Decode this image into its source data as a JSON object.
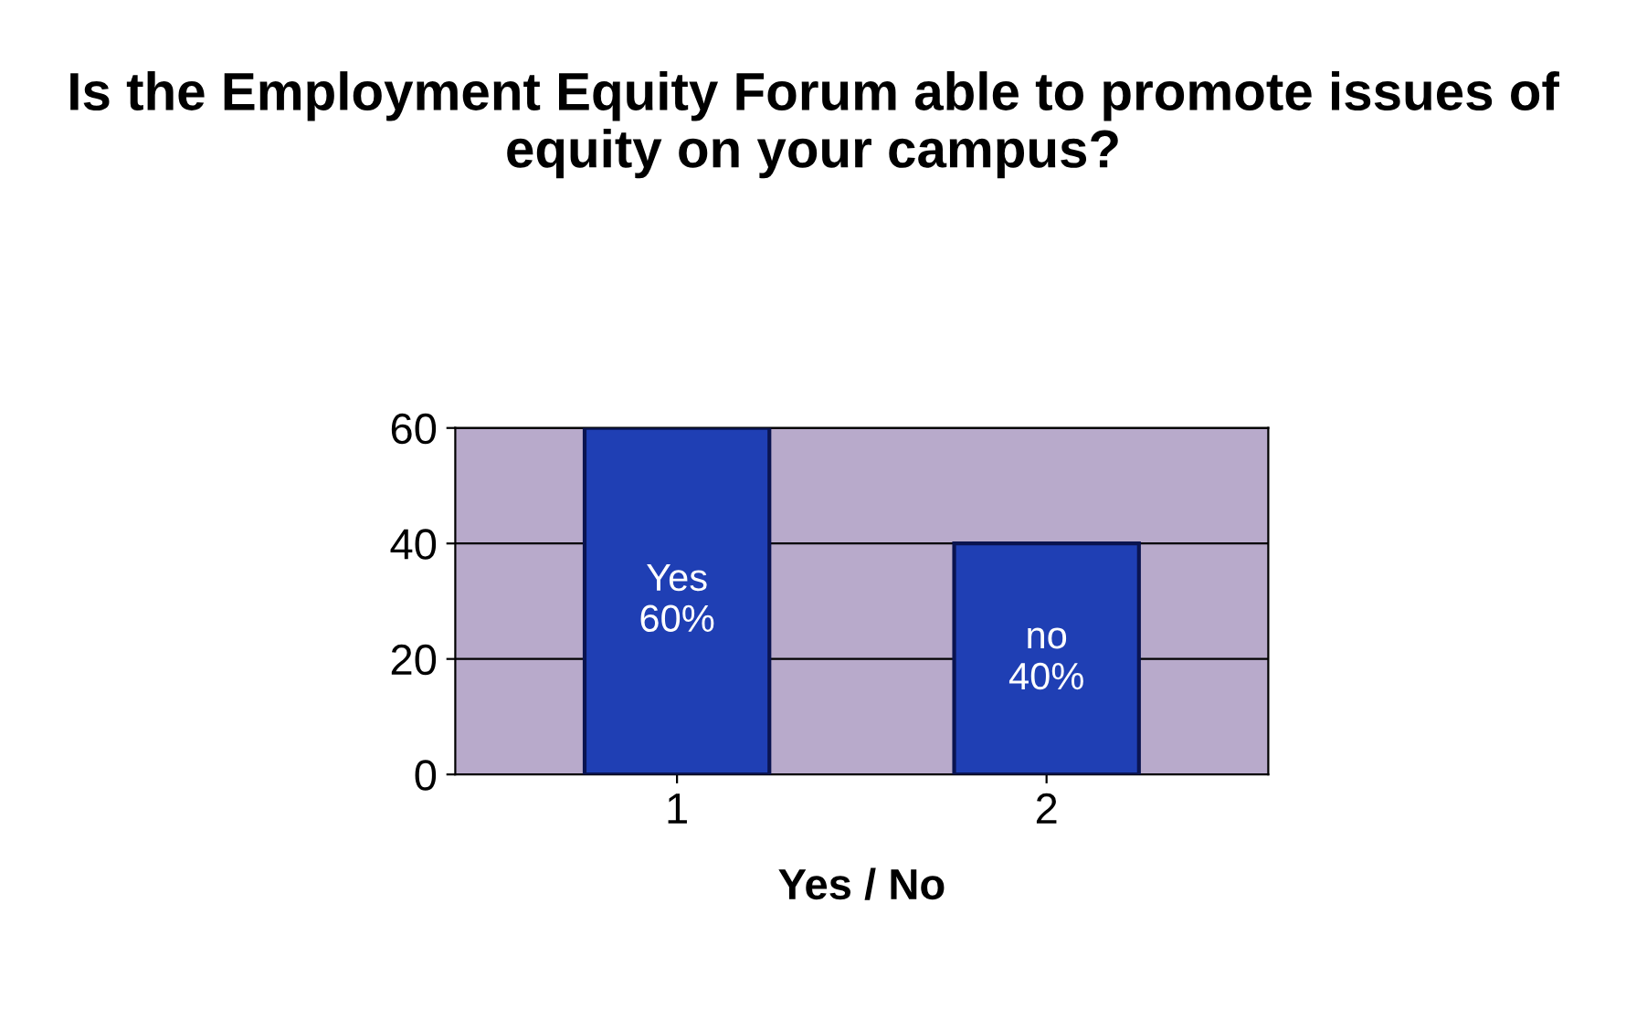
{
  "chart_data": {
    "type": "bar",
    "title": "Is the Employment Equity Forum able to promote issues of equity on your campus?",
    "xlabel": "Yes / No",
    "categories": [
      "1",
      "2"
    ],
    "values": [
      60,
      40
    ],
    "color": "#1f3fb4",
    "value_labels": [
      "Yes\n60%",
      "no\n40%"
    ],
    "ylim": [
      0,
      60
    ],
    "yticks": [
      0,
      20,
      40,
      60
    ],
    "grid": "y",
    "legend": false
  }
}
